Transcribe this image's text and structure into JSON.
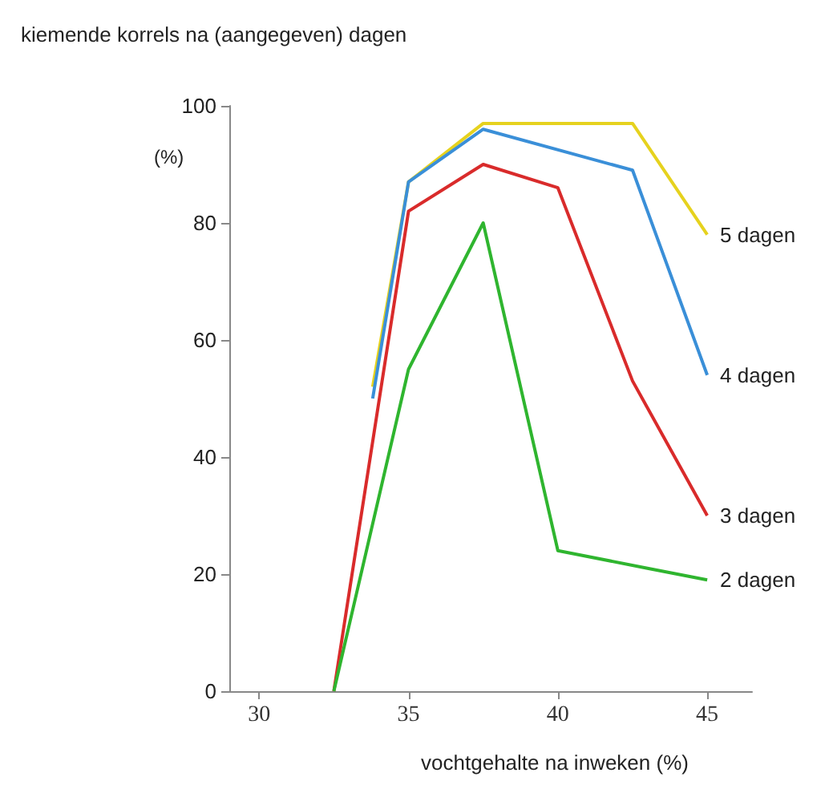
{
  "chart_data": {
    "type": "line",
    "title": "kiemende korrels na (aangegeven) dagen",
    "xlabel": "vochtgehalte na inweken (%)",
    "ylabel": "(%)",
    "xlim": [
      29,
      46.5
    ],
    "xticks": [
      30,
      35,
      40,
      45
    ],
    "ylim": [
      0,
      100
    ],
    "yticks": [
      0,
      20,
      40,
      60,
      80,
      100
    ],
    "grid": false,
    "legend": false,
    "marker": "none",
    "line_style": "solid",
    "series": [
      {
        "name": "5 dagen",
        "color": "#e6d21e",
        "x": [
          33.8,
          35,
          37.5,
          42.5,
          45
        ],
        "values": [
          52,
          87,
          97,
          97,
          78
        ]
      },
      {
        "name": "4 dagen",
        "color": "#3a8fd8",
        "x": [
          33.8,
          35,
          37.5,
          42.5,
          45
        ],
        "values": [
          50,
          87,
          96,
          89,
          54
        ]
      },
      {
        "name": "3 dagen",
        "color": "#d92b2b",
        "x": [
          32.5,
          35,
          37.5,
          40,
          42.5,
          45
        ],
        "values": [
          0,
          82,
          90,
          86,
          53,
          30
        ]
      },
      {
        "name": "2 dagen",
        "color": "#2fb52f",
        "x": [
          32.5,
          35,
          37.5,
          40,
          43,
          45
        ],
        "values": [
          0,
          55,
          80,
          24,
          21,
          19
        ]
      }
    ]
  }
}
